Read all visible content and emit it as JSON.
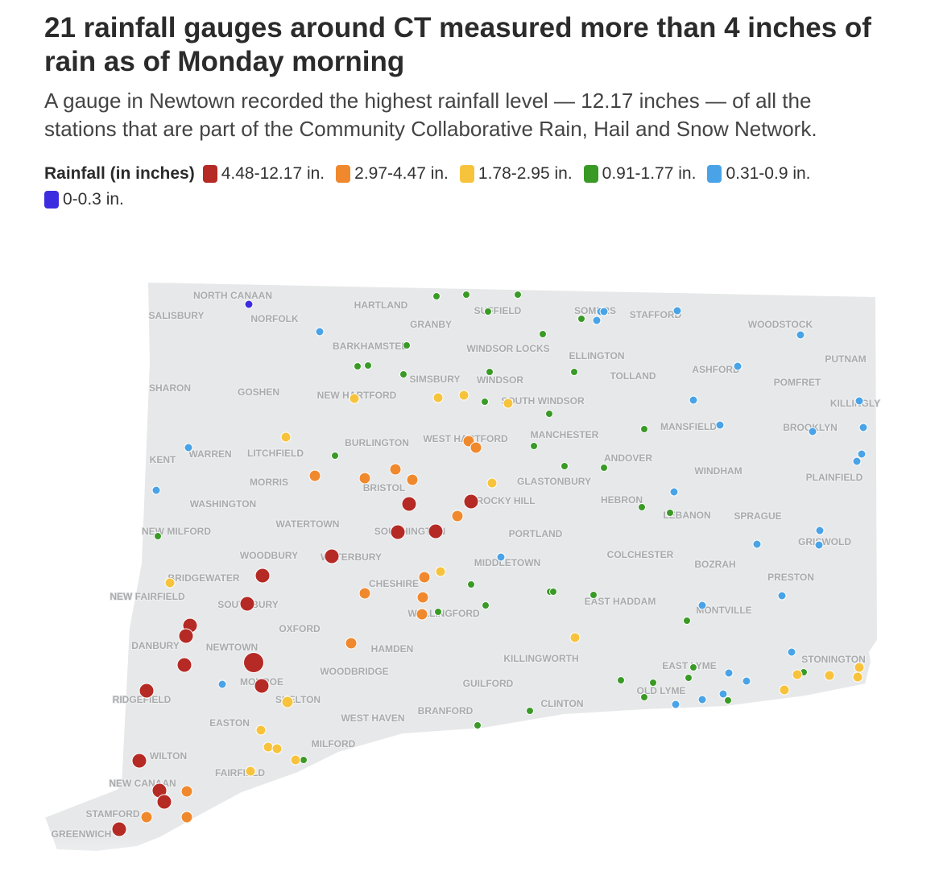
{
  "header": {
    "title": "21 rainfall gauges around CT measured more than 4 inches of rain as of Monday morning",
    "subtitle": "A gauge in Newtown recorded the highest rainfall level — 12.17 inches — of all the stations that are part of the Community Collaborative Rain, Hail and Snow Network."
  },
  "legend": {
    "title": "Rainfall (in inches)",
    "items": [
      {
        "label": "4.48-12.17 in.",
        "color": "#b52a25"
      },
      {
        "label": "2.97-4.47 in.",
        "color": "#f0892e"
      },
      {
        "label": "1.78-2.95 in.",
        "color": "#f7c33c"
      },
      {
        "label": "0.91-1.77 in.",
        "color": "#3a9a26"
      },
      {
        "label": "0.31-0.9 in.",
        "color": "#4aa3e6"
      },
      {
        "label": "0-0.3 in.",
        "color": "#3b2ddf"
      }
    ]
  },
  "map": {
    "towns": [
      "NORTH CANAAN",
      "SALISBURY",
      "NORFOLK",
      "HARTLAND",
      "GRANBY",
      "SUFFIELD",
      "SOMERS",
      "STAFFORD",
      "WOODSTOCK",
      "BARKHAMSTED",
      "WINDSOR LOCKS",
      "ELLINGTON",
      "PUTNAM",
      "TOLLAND",
      "ASHFORD",
      "SHARON",
      "GOSHEN",
      "SIMSBURY",
      "WINDSOR",
      "POMFRET",
      "NEW HARTFORD",
      "SOUTH WINDSOR",
      "KILLINGLY",
      "MANSFIELD",
      "BROOKLYN",
      "MANCHESTER",
      "BURLINGTON",
      "WEST HARTFORD",
      "KENT",
      "WARREN",
      "LITCHFIELD",
      "ANDOVER",
      "WINDHAM",
      "MORRIS",
      "BRISTOL",
      "GLASTONBURY",
      "PLAINFIELD",
      "WASHINGTON",
      "ROCKY HILL",
      "HEBRON",
      "LEBANON",
      "SPRAGUE",
      "WATERTOWN",
      "SOUTHINGTON",
      "NEW MILFORD",
      "PORTLAND",
      "GRISWOLD",
      "WOODBURY",
      "WATERBURY",
      "COLCHESTER",
      "MIDDLETOWN",
      "BOZRAH",
      "BRIDGEWATER",
      "CHESHIRE",
      "PRESTON",
      "NEW FAIRFIELD",
      "SOUTHBURY",
      "EAST HADDAM",
      "WALLINGFORD",
      "MONTVILLE",
      "OXFORD",
      "DANBURY",
      "NEWTOWN",
      "HAMDEN",
      "KILLINGWORTH",
      "STONINGTON",
      "EAST LYME",
      "WOODBRIDGE",
      "MONROE",
      "GUILFORD",
      "OLD LYME",
      "RIDGEFIELD",
      "SHELTON",
      "CLINTON",
      "BRANFORD",
      "EASTON",
      "WEST HAVEN",
      "MILFORD",
      "WILTON",
      "FAIRFIELD",
      "NEW CANAAN",
      "STAMFORD",
      "GREENWICH"
    ]
  }
}
